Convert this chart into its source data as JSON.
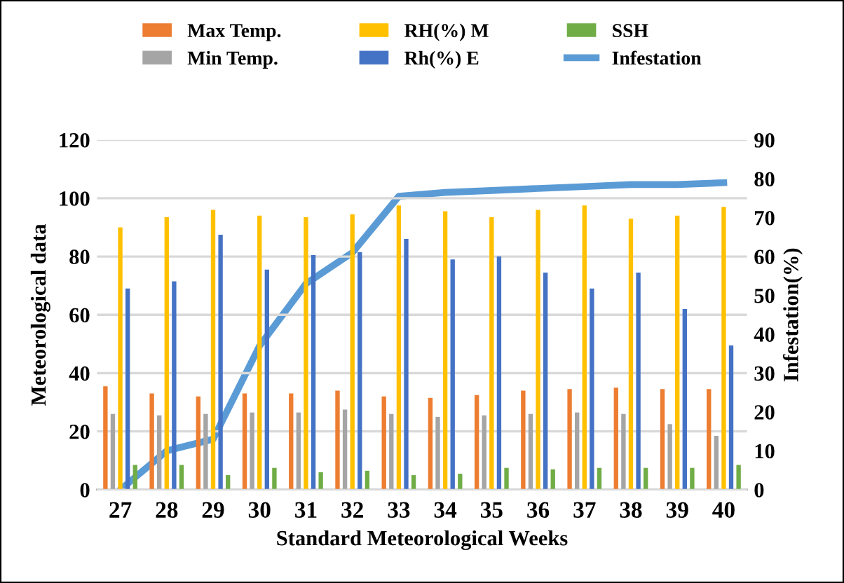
{
  "chart_data": {
    "type": "bar",
    "xlabel": "Standard Meteorological Weeks",
    "ylabel": "Meteorological data",
    "y2label": "Infestation(%)",
    "categories": [
      "27",
      "28",
      "29",
      "30",
      "31",
      "32",
      "33",
      "34",
      "35",
      "36",
      "37",
      "38",
      "39",
      "40"
    ],
    "series": [
      {
        "name": "Max Temp.",
        "color": "#ed7d31",
        "values": [
          35.5,
          33,
          32,
          33,
          33,
          34,
          32,
          31.5,
          32.5,
          34,
          34.5,
          35,
          34.5,
          34.5
        ]
      },
      {
        "name": "Min Temp.",
        "color": "#a5a5a5",
        "values": [
          26,
          25.5,
          26,
          26.5,
          26.5,
          27.5,
          26,
          25,
          25.5,
          26,
          26.5,
          26,
          22.5,
          18.5
        ]
      },
      {
        "name": "RH(%) M",
        "color": "#ffc000",
        "values": [
          90,
          93.5,
          96,
          94,
          93.5,
          94.5,
          97.5,
          95.5,
          93.5,
          96,
          97.5,
          93,
          94,
          97
        ]
      },
      {
        "name": "Rh(%) E",
        "color": "#4472c4",
        "values": [
          69,
          71.5,
          87.5,
          75.5,
          80.5,
          81.5,
          86,
          79,
          80,
          74.5,
          69,
          74.5,
          62,
          49.5
        ]
      },
      {
        "name": "SSH",
        "color": "#70ad47",
        "values": [
          8.5,
          8.5,
          5,
          7.5,
          6,
          6.5,
          5,
          5.5,
          7.5,
          7,
          7.5,
          7.5,
          7.5,
          8.5
        ]
      },
      {
        "name": "Infestation",
        "color": "#5b9bd5",
        "type": "line",
        "axis": "y2",
        "values": [
          0,
          10,
          13,
          37,
          53,
          61,
          75.5,
          76.5,
          77,
          77.5,
          78,
          78.5,
          78.5,
          79
        ]
      }
    ],
    "ylim": [
      0,
      120
    ],
    "yticks": [
      0,
      20,
      40,
      60,
      80,
      100,
      120
    ],
    "y2lim": [
      0,
      90
    ],
    "y2ticks": [
      0,
      10,
      20,
      30,
      40,
      50,
      60,
      70,
      80,
      90
    ],
    "grid": "y",
    "legend": "top",
    "marker": "none",
    "line_style": "solid"
  }
}
